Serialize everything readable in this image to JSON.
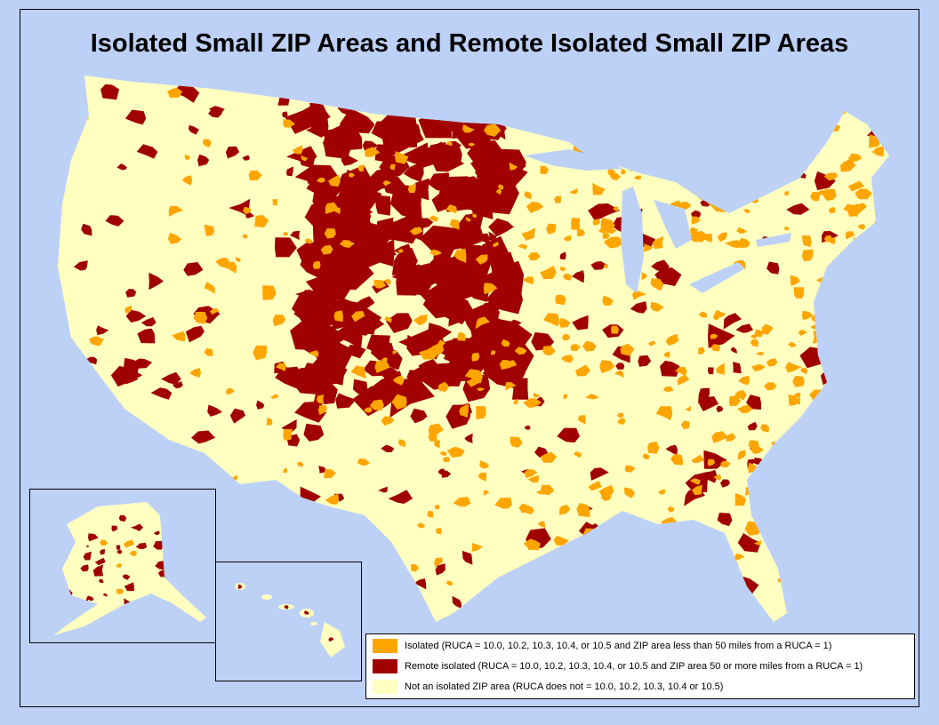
{
  "title": "Isolated Small ZIP Areas and Remote Isolated Small ZIP Areas",
  "legend": [
    {
      "label": "Isolated (RUCA = 10.0, 10.2, 10.3, 10.4, or 10.5 and ZIP area less than 50 miles from a RUCA = 1)",
      "color": "#ffa500"
    },
    {
      "label": "Remote isolated (RUCA = 10.0, 10.2, 10.3, 10.4, or 10.5 and ZIP area 50 or more miles from a RUCA = 1)",
      "color": "#a00000"
    },
    {
      "label": "Not an isolated ZIP area (RUCA does not = 10.0, 10.2, 10.3, 10.4 or 10.5)",
      "color": "#ffffc0"
    }
  ]
}
